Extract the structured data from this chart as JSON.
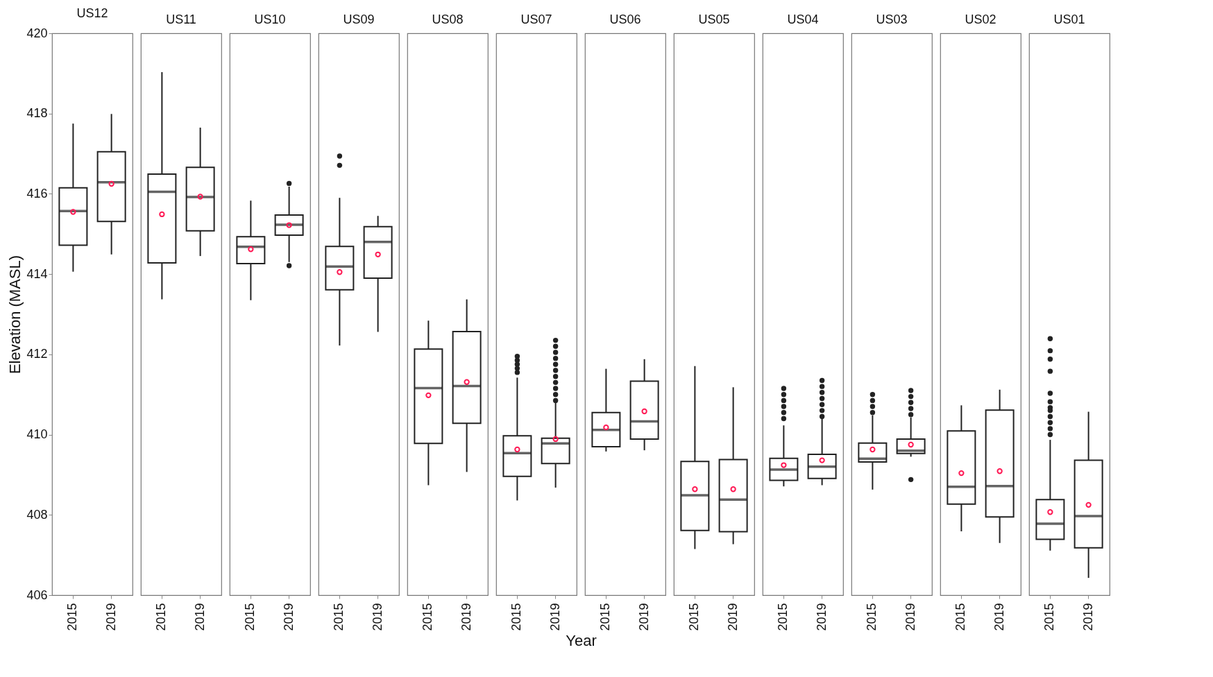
{
  "chart_data": [
    {
      "type": "box",
      "title": "US12",
      "ylabel": "Elevation (MASL)",
      "categories": [
        "2015",
        "2019"
      ],
      "ylim": [
        406,
        420
      ],
      "yticks": [
        406,
        408,
        410,
        412,
        414,
        416,
        418,
        420
      ],
      "boxes": [
        {
          "low": 414.06,
          "q1": 414.72,
          "median": 415.57,
          "q3": 416.15,
          "high": 417.75,
          "mean": 415.55
        },
        {
          "low": 414.49,
          "q1": 415.31,
          "median": 416.29,
          "q3": 417.05,
          "high": 417.99,
          "mean": 416.25
        }
      ]
    },
    {
      "type": "box",
      "title": "US11",
      "tick_labels": "x",
      "categories": [
        "2015",
        "2019"
      ],
      "ylim": [
        406,
        420
      ],
      "yticks": [
        406,
        408,
        410,
        412,
        414,
        416,
        418,
        420
      ],
      "boxes": [
        {
          "low": 413.37,
          "q1": 414.28,
          "median": 416.05,
          "q3": 416.49,
          "high": 419.03,
          "mean": 415.49
        },
        {
          "low": 414.45,
          "q1": 415.08,
          "median": 415.92,
          "q3": 416.66,
          "high": 417.65,
          "mean": 415.93
        }
      ]
    },
    {
      "type": "box",
      "title": "US10",
      "tick_labels": "x",
      "categories": [
        "2015",
        "2019"
      ],
      "ylim": [
        406,
        420
      ],
      "yticks": [
        406,
        408,
        410,
        412,
        414,
        416,
        418,
        420
      ],
      "boxes": [
        {
          "low": 413.35,
          "q1": 414.26,
          "median": 414.68,
          "q3": 414.93,
          "high": 415.83,
          "mean": 414.62
        },
        {
          "low": 414.3,
          "q1": 414.97,
          "median": 415.23,
          "q3": 415.47,
          "high": 416.18,
          "mean": 415.22,
          "outliers": [
            416.26,
            414.21
          ]
        }
      ]
    },
    {
      "type": "box",
      "title": "US09",
      "tick_labels": "x",
      "categories": [
        "2015",
        "2019"
      ],
      "ylim": [
        406,
        420
      ],
      "yticks": [
        406,
        408,
        410,
        412,
        414,
        416,
        418,
        420
      ],
      "boxes": [
        {
          "low": 412.22,
          "q1": 413.61,
          "median": 414.19,
          "q3": 414.69,
          "high": 415.9,
          "mean": 414.05,
          "outliers": [
            416.94,
            416.71
          ]
        },
        {
          "low": 412.56,
          "q1": 413.9,
          "median": 414.8,
          "q3": 415.18,
          "high": 415.45,
          "mean": 414.49
        }
      ]
    },
    {
      "type": "box",
      "title": "US08",
      "tick_labels": "x",
      "categories": [
        "2015",
        "2019"
      ],
      "ylim": [
        406,
        420
      ],
      "yticks": [
        406,
        408,
        410,
        412,
        414,
        416,
        418,
        420
      ],
      "boxes": [
        {
          "low": 408.74,
          "q1": 409.78,
          "median": 411.16,
          "q3": 412.13,
          "high": 412.84,
          "mean": 410.98
        },
        {
          "low": 409.07,
          "q1": 410.28,
          "median": 411.21,
          "q3": 412.57,
          "high": 413.37,
          "mean": 411.31
        }
      ]
    },
    {
      "type": "box",
      "title": "US07",
      "tick_labels": "x",
      "xlabel": "Year",
      "categories": [
        "2015",
        "2019"
      ],
      "ylim": [
        406,
        420
      ],
      "yticks": [
        406,
        408,
        410,
        412,
        414,
        416,
        418,
        420
      ],
      "boxes": [
        {
          "low": 408.36,
          "q1": 408.96,
          "median": 409.54,
          "q3": 409.97,
          "high": 411.42,
          "mean": 409.63,
          "outliers": [
            411.95,
            411.85,
            411.75,
            411.65,
            411.55
          ]
        },
        {
          "low": 408.68,
          "q1": 409.28,
          "median": 409.78,
          "q3": 409.91,
          "high": 410.79,
          "mean": 409.89,
          "outliers": [
            412.35,
            412.2,
            412.05,
            411.9,
            411.75,
            411.6,
            411.45,
            411.3,
            411.15,
            411.0,
            410.85
          ]
        }
      ]
    },
    {
      "type": "box",
      "title": "US06",
      "tick_labels": "x",
      "categories": [
        "2015",
        "2019"
      ],
      "ylim": [
        406,
        420
      ],
      "yticks": [
        406,
        408,
        410,
        412,
        414,
        416,
        418,
        420
      ],
      "boxes": [
        {
          "low": 409.58,
          "q1": 409.7,
          "median": 410.12,
          "q3": 410.55,
          "high": 411.64,
          "mean": 410.18
        },
        {
          "low": 409.61,
          "q1": 409.89,
          "median": 410.33,
          "q3": 411.33,
          "high": 411.88,
          "mean": 410.58
        }
      ]
    },
    {
      "type": "box",
      "title": "US05",
      "tick_labels": "x",
      "categories": [
        "2015",
        "2019"
      ],
      "ylim": [
        406,
        420
      ],
      "yticks": [
        406,
        408,
        410,
        412,
        414,
        416,
        418,
        420
      ],
      "boxes": [
        {
          "low": 407.15,
          "q1": 407.61,
          "median": 408.49,
          "q3": 409.33,
          "high": 411.71,
          "mean": 408.64
        },
        {
          "low": 407.27,
          "q1": 407.58,
          "median": 408.38,
          "q3": 409.38,
          "high": 411.18,
          "mean": 408.64
        }
      ]
    },
    {
      "type": "box",
      "title": "US04",
      "tick_labels": "x",
      "categories": [
        "2015",
        "2019"
      ],
      "ylim": [
        406,
        420
      ],
      "yticks": [
        406,
        408,
        410,
        412,
        414,
        416,
        418,
        420
      ],
      "boxes": [
        {
          "low": 408.71,
          "q1": 408.86,
          "median": 409.13,
          "q3": 409.41,
          "high": 410.23,
          "mean": 409.24,
          "outliers": [
            411.15,
            411.0,
            410.85,
            410.7,
            410.55,
            410.4
          ]
        },
        {
          "low": 408.74,
          "q1": 408.91,
          "median": 409.2,
          "q3": 409.51,
          "high": 410.4,
          "mean": 409.36,
          "outliers": [
            411.35,
            411.2,
            411.05,
            410.9,
            410.75,
            410.6,
            410.45
          ]
        }
      ]
    },
    {
      "type": "box",
      "title": "US03",
      "tick_labels": "x",
      "categories": [
        "2015",
        "2019"
      ],
      "ylim": [
        406,
        420
      ],
      "yticks": [
        406,
        408,
        410,
        412,
        414,
        416,
        418,
        420
      ],
      "boxes": [
        {
          "low": 408.63,
          "q1": 409.32,
          "median": 409.4,
          "q3": 409.79,
          "high": 410.48,
          "mean": 409.63,
          "outliers": [
            411.0,
            410.85,
            410.7,
            410.55
          ]
        },
        {
          "low": 409.45,
          "q1": 409.53,
          "median": 409.6,
          "q3": 409.89,
          "high": 410.43,
          "mean": 409.75,
          "outliers": [
            411.1,
            410.95,
            410.8,
            410.65,
            410.5,
            408.88
          ]
        }
      ]
    },
    {
      "type": "box",
      "title": "US02",
      "tick_labels": "x",
      "categories": [
        "2015",
        "2019"
      ],
      "ylim": [
        406,
        420
      ],
      "yticks": [
        406,
        408,
        410,
        412,
        414,
        416,
        418,
        420
      ],
      "boxes": [
        {
          "low": 407.59,
          "q1": 408.27,
          "median": 408.7,
          "q3": 410.09,
          "high": 410.73,
          "mean": 409.04
        },
        {
          "low": 407.3,
          "q1": 407.95,
          "median": 408.72,
          "q3": 410.61,
          "high": 411.12,
          "mean": 409.09
        }
      ]
    },
    {
      "type": "box",
      "title": "US01",
      "tick_labels": "x",
      "categories": [
        "2015",
        "2019"
      ],
      "ylim": [
        406,
        420
      ],
      "yticks": [
        406,
        408,
        410,
        412,
        414,
        416,
        418,
        420
      ],
      "boxes": [
        {
          "low": 407.11,
          "q1": 407.39,
          "median": 407.78,
          "q3": 408.38,
          "high": 409.87,
          "mean": 408.07,
          "outliers": [
            412.39,
            412.09,
            411.88,
            411.58,
            411.03,
            410.82,
            410.67,
            410.6,
            410.45,
            410.3,
            410.15,
            410.0
          ]
        },
        {
          "low": 406.43,
          "q1": 407.18,
          "median": 407.97,
          "q3": 409.36,
          "high": 410.57,
          "mean": 408.25
        }
      ]
    }
  ]
}
